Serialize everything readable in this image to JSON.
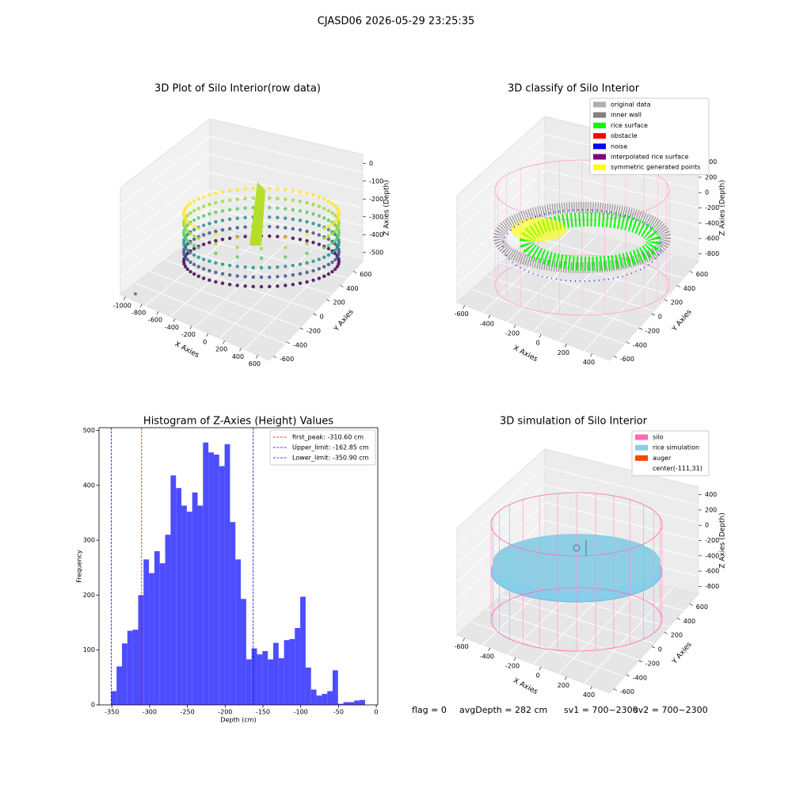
{
  "title": "CJASD06 2026-05-29 23:25:35",
  "chart_data": [
    {
      "type": "scatter3d",
      "title": "3D Plot of Silo Interior(row data)",
      "xlabel": "X Axies",
      "ylabel": "Y Axies",
      "zlabel": "Z Axies (Depth)",
      "xticks": [
        -1000,
        -800,
        -600,
        -400,
        -200,
        0,
        200,
        400,
        600
      ],
      "yticks": [
        -600,
        -400,
        -200,
        0,
        200,
        400,
        600
      ],
      "zticks": [
        0,
        -100,
        -200,
        -300,
        -400,
        -500
      ]
    },
    {
      "type": "scatter3d",
      "title": "3D classify of Silo Interior",
      "xlabel": "X Axies",
      "ylabel": "Y Axies",
      "zlabel": "Z Axies (Depth)",
      "xticks": [
        -600,
        -400,
        -200,
        0,
        200,
        400
      ],
      "yticks": [
        -600,
        -400,
        -200,
        0,
        200,
        400,
        600
      ],
      "zticks": [
        400,
        200,
        0,
        -200,
        -400,
        -600,
        -800
      ],
      "legend": [
        {
          "name": "original data",
          "color": "#b0b0b0"
        },
        {
          "name": "inner wall",
          "color": "#808080"
        },
        {
          "name": "rice surface",
          "color": "#00ff00"
        },
        {
          "name": "obstacle",
          "color": "#ff0000"
        },
        {
          "name": "noise",
          "color": "#0000ff"
        },
        {
          "name": "interpolated rice surface",
          "color": "#800080"
        },
        {
          "name": "symmetric generated points",
          "color": "#ffff00"
        }
      ]
    },
    {
      "type": "surface3d",
      "title": "3D simulation of Silo Interior",
      "xlabel": "X Axies",
      "ylabel": "Y Axies",
      "zlabel": "Z Axies (Depth)",
      "xticks": [
        -600,
        -400,
        -200,
        0,
        200,
        400
      ],
      "yticks": [
        -600,
        -400,
        -200,
        0,
        200,
        400,
        600
      ],
      "zticks": [
        400,
        200,
        0,
        -200,
        -400,
        -600,
        -800
      ],
      "legend": [
        {
          "name": "silo",
          "color": "#ff69b4"
        },
        {
          "name": "rice simulation",
          "color": "#87ceeb"
        },
        {
          "name": "auger",
          "color": "#ff4500"
        },
        {
          "name": "center(-111,31)"
        }
      ]
    },
    {
      "type": "histogram",
      "title": "Histogram of Z-Axies (Height) Values",
      "xlabel": "Depth (cm)",
      "ylabel": "Frequency",
      "color": "#4d4dff",
      "bins": [
        -350.9,
        -343.75,
        -336.6,
        -329.45,
        -322.3,
        -315.15,
        -308.0,
        -300.85,
        -293.7,
        -286.55,
        -279.4,
        -272.25,
        -265.1,
        -257.95,
        -250.8,
        -243.65,
        -236.5,
        -229.35,
        -222.2,
        -215.05,
        -207.9,
        -200.75,
        -193.6,
        -186.45,
        -179.3,
        -172.15,
        -165.0,
        -157.85,
        -150.7,
        -143.55,
        -136.4,
        -129.25,
        -122.1,
        -114.95,
        -107.8,
        -100.65,
        -93.5,
        -86.35,
        -79.2,
        -72.05,
        -64.9,
        -57.75,
        -50.6,
        -43.45,
        -36.3,
        -29.15,
        -22.0,
        -14.85
      ],
      "values": [
        25,
        70,
        112,
        135,
        137,
        200,
        265,
        240,
        280,
        258,
        310,
        418,
        395,
        363,
        352,
        387,
        363,
        478,
        460,
        456,
        435,
        475,
        333,
        265,
        193,
        83,
        103,
        92,
        98,
        83,
        113,
        85,
        118,
        120,
        140,
        197,
        68,
        28,
        17,
        20,
        25,
        63,
        2,
        5,
        5,
        8,
        9
      ],
      "xlim": [
        -367,
        2
      ],
      "ylim": [
        0,
        505
      ],
      "xticks": [
        -350,
        -300,
        -250,
        -200,
        -150,
        -100,
        -50,
        0
      ],
      "yticks": [
        0,
        100,
        200,
        300,
        400,
        500
      ],
      "vlines": [
        {
          "value": -310.6,
          "label": "first_peak: -310.60 cm",
          "color": "#ff0000"
        },
        {
          "value": -162.85,
          "label": "Upper_limit: -162.85 cm",
          "color": "#0000ff"
        },
        {
          "value": -350.9,
          "label": "Lower_limit: -350.90 cm",
          "color": "#0000ff"
        }
      ],
      "legend_loc": "upper right"
    }
  ],
  "footer": [
    "flag = 0",
    "avgDepth = 282 cm",
    "sv1 = 700~2300",
    "sv2 = 700~2300"
  ]
}
